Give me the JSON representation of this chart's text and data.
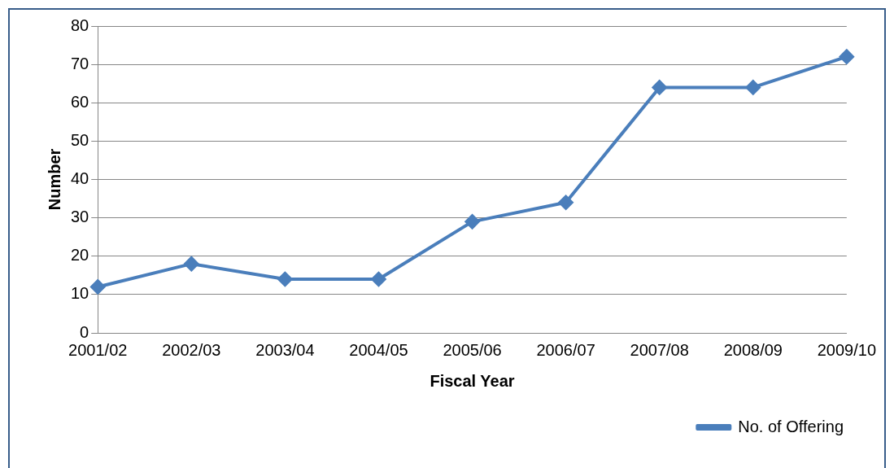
{
  "chart_data": {
    "type": "line",
    "xlabel": "Fiscal Year",
    "ylabel": "Number",
    "categories": [
      "2001/02",
      "2002/03",
      "2003/04",
      "2004/05",
      "2005/06",
      "2006/07",
      "2007/08",
      "2008/09",
      "2009/10"
    ],
    "series": [
      {
        "name": "No. of Offering",
        "color": "#4a7ebb",
        "values": [
          12,
          18,
          14,
          14,
          29,
          34,
          64,
          64,
          72
        ]
      }
    ],
    "ylim": [
      0,
      80
    ],
    "yticks": [
      0,
      10,
      20,
      30,
      40,
      50,
      60,
      70,
      80
    ],
    "grid": "y",
    "legend": "bottom right",
    "marker": "diamond",
    "line_style": "solid"
  }
}
